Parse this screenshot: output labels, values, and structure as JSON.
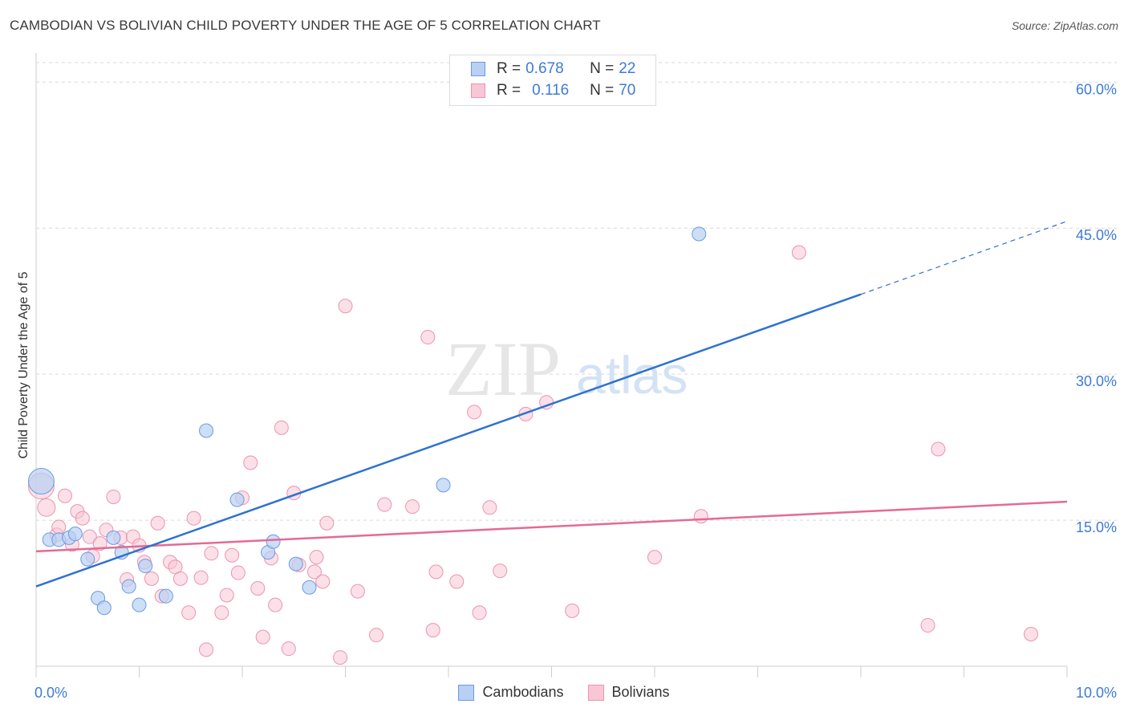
{
  "title": "CAMBODIAN VS BOLIVIAN CHILD POVERTY UNDER THE AGE OF 5 CORRELATION CHART",
  "source": "Source: ZipAtlas.com",
  "watermark": {
    "zip": "ZIP",
    "atlas": "atlas"
  },
  "colors": {
    "cambodian_fill": "#b8d0f4",
    "cambodian_stroke": "#6b9be0",
    "cambodian_line": "#2f72d0",
    "bolivian_fill": "#f9c6d6",
    "bolivian_stroke": "#ec93b1",
    "bolivian_line": "#e56a95",
    "tick_label": "#3d7bd6",
    "grid": "#d9d9d9"
  },
  "legend": {
    "rows": [
      {
        "r_label": "R =",
        "r_value": "0.678",
        "n_label": "N =",
        "n_value": "22"
      },
      {
        "r_label": "R =",
        "r_value": "0.116",
        "n_label": "N =",
        "n_value": "70"
      }
    ]
  },
  "bottom_legend": [
    "Cambodians",
    "Bolivians"
  ],
  "chart_data": {
    "type": "scatter",
    "title": "CAMBODIAN VS BOLIVIAN CHILD POVERTY UNDER THE AGE OF 5 CORRELATION CHART",
    "xlabel": "",
    "ylabel": "Child Poverty Under the Age of 5",
    "xlim": [
      0,
      10
    ],
    "ylim": [
      0,
      62
    ],
    "x_tick_labels": [
      "0.0%",
      "10.0%"
    ],
    "y_ticks": [
      15,
      30,
      45,
      60
    ],
    "y_tick_labels": [
      "15.0%",
      "30.0%",
      "45.0%",
      "60.0%"
    ],
    "grid": true,
    "series": [
      {
        "name": "Cambodians",
        "r": 0.678,
        "n": 22,
        "points": [
          [
            0.05,
            19.0
          ],
          [
            0.13,
            13.0
          ],
          [
            0.22,
            13.0
          ],
          [
            0.32,
            13.2
          ],
          [
            0.38,
            13.6
          ],
          [
            0.5,
            11.0
          ],
          [
            0.6,
            7.0
          ],
          [
            0.66,
            6.0
          ],
          [
            0.75,
            13.2
          ],
          [
            0.83,
            11.7
          ],
          [
            0.9,
            8.2
          ],
          [
            1.0,
            6.3
          ],
          [
            1.06,
            10.3
          ],
          [
            1.26,
            7.2
          ],
          [
            1.65,
            24.2
          ],
          [
            1.95,
            17.1
          ],
          [
            2.25,
            11.7
          ],
          [
            2.3,
            12.8
          ],
          [
            2.52,
            10.5
          ],
          [
            2.65,
            8.1
          ],
          [
            3.95,
            18.6
          ],
          [
            6.43,
            44.4
          ]
        ],
        "trend": {
          "x": [
            0,
            8.0
          ],
          "y": [
            8.2,
            38.2
          ]
        },
        "trend_dashed": {
          "x": [
            8.0,
            10.0
          ],
          "y": [
            38.2,
            45.7
          ]
        }
      },
      {
        "name": "Bolivians",
        "r": 0.116,
        "n": 70,
        "points": [
          [
            0.05,
            18.5
          ],
          [
            0.1,
            16.3
          ],
          [
            0.2,
            13.5
          ],
          [
            0.22,
            14.3
          ],
          [
            0.28,
            17.5
          ],
          [
            0.35,
            12.5
          ],
          [
            0.4,
            15.9
          ],
          [
            0.45,
            15.2
          ],
          [
            0.52,
            13.3
          ],
          [
            0.55,
            11.3
          ],
          [
            0.62,
            12.6
          ],
          [
            0.68,
            14.0
          ],
          [
            0.75,
            17.4
          ],
          [
            0.82,
            13.2
          ],
          [
            0.88,
            8.9
          ],
          [
            0.94,
            13.3
          ],
          [
            1.0,
            12.4
          ],
          [
            1.05,
            10.7
          ],
          [
            1.12,
            9.0
          ],
          [
            1.18,
            14.7
          ],
          [
            1.22,
            7.2
          ],
          [
            1.3,
            10.7
          ],
          [
            1.35,
            10.2
          ],
          [
            1.4,
            9.0
          ],
          [
            1.48,
            5.5
          ],
          [
            1.53,
            15.2
          ],
          [
            1.6,
            9.1
          ],
          [
            1.65,
            1.7
          ],
          [
            1.7,
            11.6
          ],
          [
            1.8,
            5.5
          ],
          [
            1.85,
            7.3
          ],
          [
            1.9,
            11.4
          ],
          [
            1.96,
            9.6
          ],
          [
            2.0,
            17.3
          ],
          [
            2.08,
            20.9
          ],
          [
            2.15,
            8.0
          ],
          [
            2.2,
            3.0
          ],
          [
            2.28,
            11.1
          ],
          [
            2.32,
            6.3
          ],
          [
            2.38,
            24.5
          ],
          [
            2.45,
            1.8
          ],
          [
            2.5,
            17.8
          ],
          [
            2.55,
            10.4
          ],
          [
            2.7,
            9.7
          ],
          [
            2.72,
            11.2
          ],
          [
            2.78,
            8.7
          ],
          [
            2.82,
            14.7
          ],
          [
            2.95,
            0.9
          ],
          [
            3.0,
            37.0
          ],
          [
            3.12,
            7.7
          ],
          [
            3.3,
            3.2
          ],
          [
            3.38,
            16.6
          ],
          [
            3.65,
            16.4
          ],
          [
            3.8,
            33.8
          ],
          [
            3.85,
            3.7
          ],
          [
            3.88,
            9.7
          ],
          [
            4.08,
            8.7
          ],
          [
            4.25,
            26.1
          ],
          [
            4.3,
            5.5
          ],
          [
            4.4,
            16.3
          ],
          [
            4.5,
            9.8
          ],
          [
            4.75,
            25.9
          ],
          [
            4.95,
            27.1
          ],
          [
            5.2,
            5.7
          ],
          [
            6.0,
            11.2
          ],
          [
            6.45,
            15.4
          ],
          [
            7.4,
            42.5
          ],
          [
            8.65,
            4.2
          ],
          [
            8.75,
            22.3
          ],
          [
            9.65,
            3.3
          ]
        ],
        "trend": {
          "x": [
            0,
            10.0
          ],
          "y": [
            11.8,
            16.9
          ]
        }
      }
    ]
  }
}
